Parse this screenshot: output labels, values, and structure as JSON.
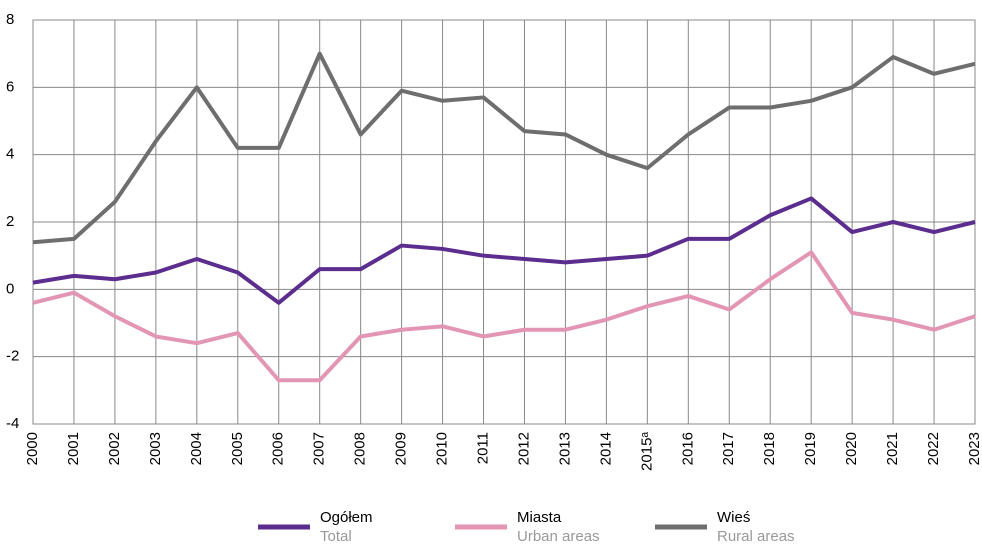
{
  "chart_data": {
    "type": "line",
    "categories": [
      "2000",
      "2001",
      "2002",
      "2003",
      "2004",
      "2005",
      "2006",
      "2007",
      "2008",
      "2009",
      "2010",
      "2011",
      "2012",
      "2013",
      "2014",
      "2015ᵃ",
      "2016",
      "2017",
      "2018",
      "2019",
      "2020",
      "2021",
      "2022",
      "2023"
    ],
    "series": [
      {
        "name": "Ogółem",
        "name_en": "Total",
        "color": "#5b2d8e",
        "values": [
          0.2,
          0.4,
          0.3,
          0.5,
          0.9,
          0.5,
          -0.4,
          0.6,
          0.6,
          1.3,
          1.2,
          1.0,
          0.9,
          0.8,
          0.9,
          1.0,
          1.5,
          1.5,
          2.2,
          2.7,
          1.7,
          2.0,
          1.7,
          2.0
        ]
      },
      {
        "name": "Miasta",
        "name_en": "Urban areas",
        "color": "#e396b4",
        "values": [
          -0.4,
          -0.1,
          -0.8,
          -1.4,
          -1.6,
          -1.3,
          -2.7,
          -2.7,
          -1.4,
          -1.2,
          -1.1,
          -1.4,
          -1.2,
          -1.2,
          -0.9,
          -0.5,
          -0.2,
          -0.6,
          0.3,
          1.1,
          -0.7,
          -0.9,
          -1.2,
          -0.8
        ]
      },
      {
        "name": "Wieś",
        "name_en": "Rural areas",
        "color": "#6e6e6e",
        "values": [
          1.4,
          1.5,
          2.6,
          4.4,
          6.0,
          4.2,
          4.2,
          7.0,
          4.6,
          5.9,
          5.6,
          5.7,
          4.7,
          4.6,
          4.0,
          3.6,
          4.6,
          5.4,
          5.4,
          5.6,
          6.0,
          6.9,
          6.4,
          6.7
        ]
      }
    ],
    "ylim": [
      -4,
      8
    ],
    "yticks": [
      -4,
      -2,
      0,
      2,
      4,
      6,
      8
    ],
    "grid": true
  }
}
